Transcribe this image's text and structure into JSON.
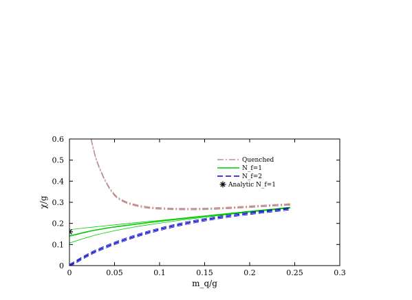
{
  "chart_data": {
    "type": "line",
    "xlabel": "m_q/g",
    "ylabel": "χ/g",
    "xlim": [
      0,
      0.3
    ],
    "ylim": [
      0,
      0.6
    ],
    "xticks": [
      "0",
      "0.05",
      "0.1",
      "0.15",
      "0.2",
      "0.25",
      "0.3"
    ],
    "yticks": [
      "0",
      "0.1",
      "0.2",
      "0.3",
      "0.4",
      "0.5",
      "0.6"
    ],
    "grid": false,
    "legend_position": "top-right",
    "legend": {
      "quenched": "Quenched",
      "nf1": "N_f=1",
      "nf2": "N_f=2",
      "analytic": "Analytic N_f=1"
    },
    "colors": {
      "quenched": "#bc8f8f",
      "nf1": "#00cc00",
      "nf2": "#0000cc",
      "axis": "#000000"
    },
    "series": [
      {
        "name": "Quenched",
        "style": "dash-dot",
        "x": [
          0.024,
          0.03,
          0.04,
          0.05,
          0.06,
          0.07,
          0.08,
          0.09,
          0.1,
          0.12,
          0.14,
          0.16,
          0.18,
          0.2,
          0.22,
          0.245
        ],
        "y": [
          0.6,
          0.5,
          0.4,
          0.335,
          0.305,
          0.29,
          0.28,
          0.274,
          0.271,
          0.268,
          0.268,
          0.27,
          0.274,
          0.279,
          0.284,
          0.29
        ],
        "band": 0.004
      },
      {
        "name": "N_f=1",
        "style": "solid",
        "x": [
          0,
          0.025,
          0.05,
          0.075,
          0.1,
          0.125,
          0.15,
          0.175,
          0.2,
          0.225,
          0.245
        ],
        "y": [
          0.14,
          0.165,
          0.183,
          0.197,
          0.21,
          0.222,
          0.234,
          0.245,
          0.256,
          0.266,
          0.275
        ],
        "upper": [
          0.17,
          0.182,
          0.193,
          0.204,
          0.214,
          0.225,
          0.236,
          0.247,
          0.258,
          0.268,
          0.277
        ],
        "lower": [
          0.107,
          0.14,
          0.165,
          0.185,
          0.201,
          0.216,
          0.229,
          0.242,
          0.253,
          0.264,
          0.272
        ]
      },
      {
        "name": "N_f=2",
        "style": "dashed",
        "x": [
          0,
          0.025,
          0.05,
          0.075,
          0.1,
          0.125,
          0.15,
          0.175,
          0.2,
          0.225,
          0.245
        ],
        "y": [
          0.0,
          0.06,
          0.105,
          0.142,
          0.172,
          0.197,
          0.217,
          0.234,
          0.248,
          0.26,
          0.27
        ],
        "band": 0.006
      },
      {
        "name": "Analytic N_f=1",
        "style": "marker",
        "x": [
          0
        ],
        "y": [
          0.16
        ]
      }
    ]
  }
}
